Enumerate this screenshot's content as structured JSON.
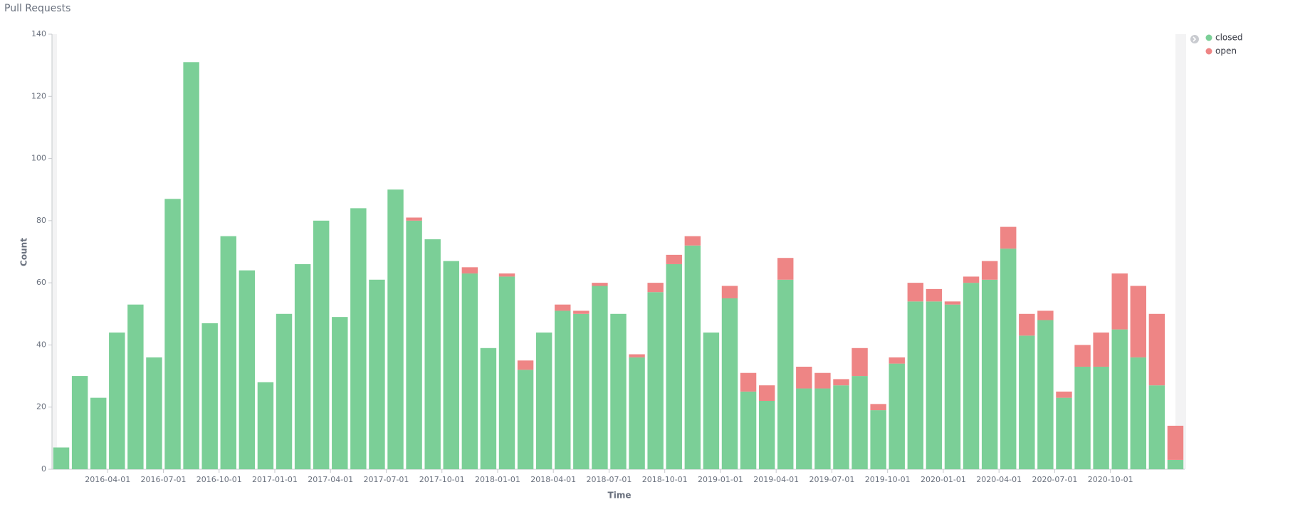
{
  "chart_data": {
    "type": "stacked-bar",
    "title": "Pull Requests",
    "x_label": "Time",
    "y_label": "Count",
    "x": [
      "2016-01-01",
      "2016-02-01",
      "2016-03-01",
      "2016-04-01",
      "2016-05-01",
      "2016-06-01",
      "2016-07-01",
      "2016-08-01",
      "2016-09-01",
      "2016-10-01",
      "2016-11-01",
      "2016-12-01",
      "2017-01-01",
      "2017-02-01",
      "2017-03-01",
      "2017-04-01",
      "2017-05-01",
      "2017-06-01",
      "2017-07-01",
      "2017-08-01",
      "2017-09-01",
      "2017-10-01",
      "2017-11-01",
      "2017-12-01",
      "2018-01-01",
      "2018-02-01",
      "2018-03-01",
      "2018-04-01",
      "2018-05-01",
      "2018-06-01",
      "2018-07-01",
      "2018-08-01",
      "2018-09-01",
      "2018-10-01",
      "2018-11-01",
      "2018-12-01",
      "2019-01-01",
      "2019-02-01",
      "2019-03-01",
      "2019-04-01",
      "2019-05-01",
      "2019-06-01",
      "2019-07-01",
      "2019-08-01",
      "2019-09-01",
      "2019-10-01",
      "2019-11-01",
      "2019-12-01",
      "2020-01-01",
      "2020-02-01",
      "2020-03-01",
      "2020-04-01",
      "2020-05-01",
      "2020-06-01",
      "2020-07-01",
      "2020-08-01",
      "2020-09-01",
      "2020-10-01",
      "2020-11-01",
      "2020-12-01",
      "2021-01-01"
    ],
    "xticks": [
      "2016-04-01",
      "2016-07-01",
      "2016-10-01",
      "2017-01-01",
      "2017-04-01",
      "2017-07-01",
      "2017-10-01",
      "2018-01-01",
      "2018-04-01",
      "2018-07-01",
      "2018-10-01",
      "2019-01-01",
      "2019-04-01",
      "2019-07-01",
      "2019-10-01",
      "2020-01-01",
      "2020-04-01",
      "2020-07-01",
      "2020-10-01"
    ],
    "series": [
      {
        "name": "closed",
        "color": "#7bcf97",
        "values": [
          7,
          30,
          23,
          44,
          53,
          36,
          87,
          131,
          47,
          75,
          64,
          28,
          50,
          66,
          80,
          49,
          84,
          61,
          90,
          80,
          74,
          67,
          63,
          39,
          62,
          32,
          44,
          51,
          50,
          59,
          50,
          36,
          57,
          66,
          72,
          44,
          55,
          25,
          22,
          61,
          26,
          26,
          27,
          30,
          19,
          34,
          54,
          54,
          53,
          60,
          61,
          71,
          43,
          48,
          23,
          33,
          33,
          45,
          36,
          27,
          3
        ]
      },
      {
        "name": "open",
        "color": "#ee8585",
        "values": [
          0,
          0,
          0,
          0,
          0,
          0,
          0,
          0,
          0,
          0,
          0,
          0,
          0,
          0,
          0,
          0,
          0,
          0,
          0,
          1,
          0,
          0,
          2,
          0,
          1,
          3,
          0,
          2,
          1,
          1,
          0,
          1,
          3,
          3,
          3,
          0,
          4,
          6,
          5,
          7,
          7,
          5,
          2,
          9,
          2,
          2,
          6,
          4,
          1,
          2,
          6,
          7,
          7,
          3,
          2,
          7,
          11,
          18,
          23,
          23,
          11
        ]
      }
    ],
    "ylim": [
      0,
      140
    ],
    "yticks": [
      0,
      20,
      40,
      60,
      80,
      100,
      120,
      140
    ],
    "legend": "top-right"
  }
}
